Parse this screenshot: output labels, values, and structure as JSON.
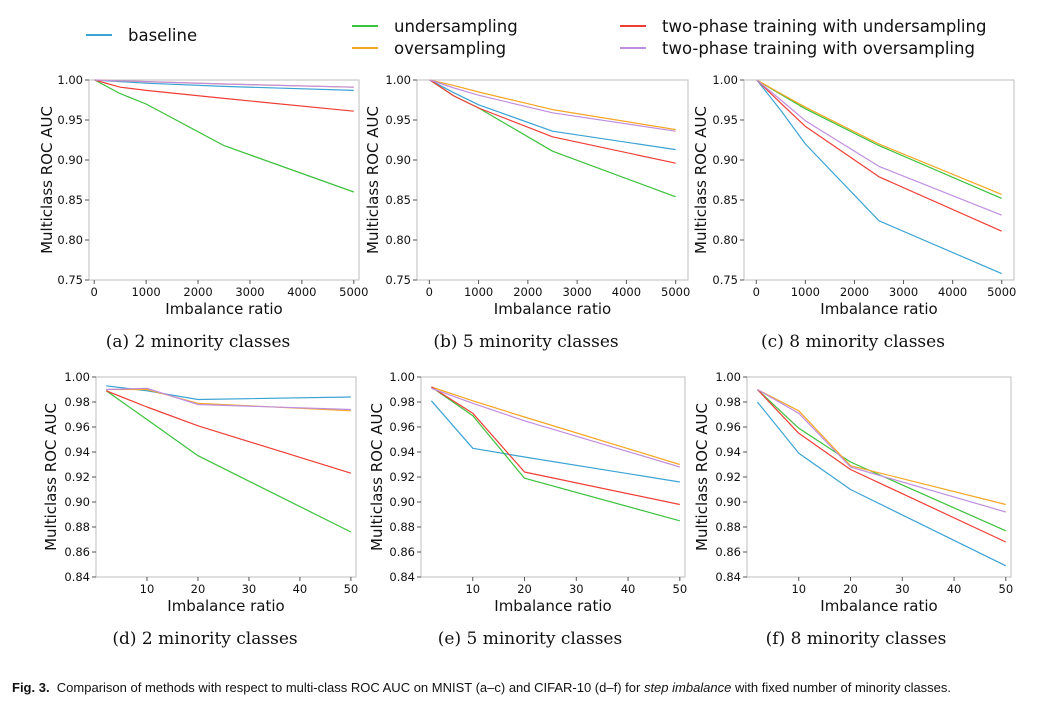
{
  "legend": [
    {
      "name": "baseline",
      "color": "#3ba3d4"
    },
    {
      "name": "undersampling",
      "color": "#3cc13c"
    },
    {
      "name": "oversampling",
      "color": "#f5a623"
    },
    {
      "name": "two-phase training with undersampling",
      "color": "#ef3e36"
    },
    {
      "name": "two-phase training with oversampling",
      "color": "#c08ee0"
    }
  ],
  "caption": {
    "label": "Fig. 3.",
    "text_before": "Comparison of methods with respect to multi-class ROC AUC on MNIST (a–c) and CIFAR-10 (d–f) for ",
    "emphasis": "step imbalance",
    "text_after": " with fixed number of minority classes."
  },
  "chart_data": [
    {
      "type": "line",
      "subcaption": "(a) 2 minority classes",
      "xlabel": "Imbalance ratio",
      "ylabel": "Multiclass ROC AUC",
      "xlim": [
        -100,
        5100
      ],
      "ylim": [
        0.75,
        1.0
      ],
      "xticks": [
        0,
        1000,
        2000,
        3000,
        4000,
        5000
      ],
      "yticks": [
        0.75,
        0.8,
        0.85,
        0.9,
        0.95,
        1.0
      ],
      "grid": false,
      "x": [
        10,
        500,
        1000,
        2500,
        5000
      ],
      "series": [
        {
          "name": "baseline",
          "values": [
            1.0,
            0.998,
            0.996,
            0.992,
            0.987
          ]
        },
        {
          "name": "undersampling",
          "values": [
            1.0,
            0.983,
            0.97,
            0.918,
            0.86
          ]
        },
        {
          "name": "oversampling",
          "values": [
            1.0,
            0.999,
            0.998,
            0.995,
            0.991
          ]
        },
        {
          "name": "two-phase training with undersampling",
          "values": [
            1.0,
            0.991,
            0.987,
            0.977,
            0.961
          ]
        },
        {
          "name": "two-phase training with oversampling",
          "values": [
            1.0,
            0.999,
            0.998,
            0.995,
            0.991
          ]
        }
      ]
    },
    {
      "type": "line",
      "subcaption": "(b) 5 minority classes",
      "xlabel": "Imbalance ratio",
      "ylabel": "Multiclass ROC AUC",
      "xlim": [
        -250,
        5250
      ],
      "ylim": [
        0.75,
        1.0
      ],
      "xticks": [
        0,
        1000,
        2000,
        3000,
        4000,
        5000
      ],
      "yticks": [
        0.75,
        0.8,
        0.85,
        0.9,
        0.95,
        1.0
      ],
      "grid": false,
      "x": [
        10,
        500,
        1000,
        2500,
        5000
      ],
      "series": [
        {
          "name": "baseline",
          "values": [
            1.0,
            0.984,
            0.969,
            0.936,
            0.913
          ]
        },
        {
          "name": "undersampling",
          "values": [
            1.0,
            0.98,
            0.965,
            0.911,
            0.854
          ]
        },
        {
          "name": "oversampling",
          "values": [
            1.0,
            0.993,
            0.985,
            0.963,
            0.938
          ]
        },
        {
          "name": "two-phase training with undersampling",
          "values": [
            1.0,
            0.98,
            0.965,
            0.929,
            0.896
          ]
        },
        {
          "name": "two-phase training with oversampling",
          "values": [
            1.0,
            0.99,
            0.981,
            0.959,
            0.936
          ]
        }
      ]
    },
    {
      "type": "line",
      "subcaption": "(c) 8 minority classes",
      "xlabel": "Imbalance ratio",
      "ylabel": "Multiclass ROC AUC",
      "xlim": [
        -250,
        5250
      ],
      "ylim": [
        0.75,
        1.0
      ],
      "xticks": [
        0,
        1000,
        2000,
        3000,
        4000,
        5000
      ],
      "yticks": [
        0.75,
        0.8,
        0.85,
        0.9,
        0.95,
        1.0
      ],
      "grid": false,
      "x": [
        10,
        500,
        1000,
        2500,
        5000
      ],
      "series": [
        {
          "name": "baseline",
          "values": [
            1.0,
            0.962,
            0.92,
            0.824,
            0.758
          ]
        },
        {
          "name": "undersampling",
          "values": [
            1.0,
            0.982,
            0.964,
            0.918,
            0.852
          ]
        },
        {
          "name": "oversampling",
          "values": [
            1.0,
            0.983,
            0.966,
            0.92,
            0.857
          ]
        },
        {
          "name": "two-phase training with undersampling",
          "values": [
            1.0,
            0.971,
            0.942,
            0.879,
            0.811
          ]
        },
        {
          "name": "two-phase training with oversampling",
          "values": [
            1.0,
            0.975,
            0.949,
            0.892,
            0.831
          ]
        }
      ]
    },
    {
      "type": "line",
      "subcaption": "(d) 2 minority classes",
      "xlabel": "Imbalance ratio",
      "ylabel": "Multiclass ROC AUC",
      "xlim": [
        0,
        51
      ],
      "ylim": [
        0.84,
        1.0
      ],
      "xticks": [
        10,
        20,
        30,
        40,
        50
      ],
      "yticks": [
        0.84,
        0.86,
        0.88,
        0.9,
        0.92,
        0.94,
        0.96,
        0.98,
        1.0
      ],
      "grid": false,
      "x": [
        2,
        10,
        20,
        50
      ],
      "series": [
        {
          "name": "baseline",
          "values": [
            0.993,
            0.989,
            0.982,
            0.984
          ]
        },
        {
          "name": "undersampling",
          "values": [
            0.989,
            0.966,
            0.937,
            0.876
          ]
        },
        {
          "name": "oversampling",
          "values": [
            0.99,
            0.99,
            0.979,
            0.973
          ]
        },
        {
          "name": "two-phase training with undersampling",
          "values": [
            0.989,
            0.976,
            0.961,
            0.923
          ]
        },
        {
          "name": "two-phase training with oversampling",
          "values": [
            0.99,
            0.991,
            0.978,
            0.974
          ]
        }
      ]
    },
    {
      "type": "line",
      "subcaption": "(e) 5 minority classes",
      "xlabel": "Imbalance ratio",
      "ylabel": "Multiclass ROC AUC",
      "xlim": [
        0,
        51
      ],
      "ylim": [
        0.84,
        1.0
      ],
      "xticks": [
        10,
        20,
        30,
        40,
        50
      ],
      "yticks": [
        0.84,
        0.86,
        0.88,
        0.9,
        0.92,
        0.94,
        0.96,
        0.98,
        1.0
      ],
      "grid": false,
      "x": [
        2,
        10,
        20,
        50
      ],
      "series": [
        {
          "name": "baseline",
          "values": [
            0.981,
            0.943,
            0.936,
            0.916
          ]
        },
        {
          "name": "undersampling",
          "values": [
            0.992,
            0.969,
            0.919,
            0.885
          ]
        },
        {
          "name": "oversampling",
          "values": [
            0.992,
            0.981,
            0.968,
            0.93
          ]
        },
        {
          "name": "two-phase training with undersampling",
          "values": [
            0.992,
            0.971,
            0.924,
            0.898
          ]
        },
        {
          "name": "two-phase training with oversampling",
          "values": [
            0.991,
            0.979,
            0.965,
            0.928
          ]
        }
      ]
    },
    {
      "type": "line",
      "subcaption": "(f) 8 minority classes",
      "xlabel": "Imbalance ratio",
      "ylabel": "Multiclass ROC AUC",
      "xlim": [
        0,
        51
      ],
      "ylim": [
        0.84,
        1.0
      ],
      "xticks": [
        10,
        20,
        30,
        40,
        50
      ],
      "yticks": [
        0.84,
        0.86,
        0.88,
        0.9,
        0.92,
        0.94,
        0.96,
        0.98,
        1.0
      ],
      "grid": false,
      "x": [
        2,
        10,
        20,
        50
      ],
      "series": [
        {
          "name": "baseline",
          "values": [
            0.98,
            0.939,
            0.91,
            0.849
          ]
        },
        {
          "name": "undersampling",
          "values": [
            0.99,
            0.959,
            0.932,
            0.877
          ]
        },
        {
          "name": "oversampling",
          "values": [
            0.99,
            0.973,
            0.929,
            0.898
          ]
        },
        {
          "name": "two-phase training with undersampling",
          "values": [
            0.99,
            0.955,
            0.926,
            0.868
          ]
        },
        {
          "name": "two-phase training with oversampling",
          "values": [
            0.99,
            0.971,
            0.928,
            0.892
          ]
        }
      ]
    }
  ]
}
